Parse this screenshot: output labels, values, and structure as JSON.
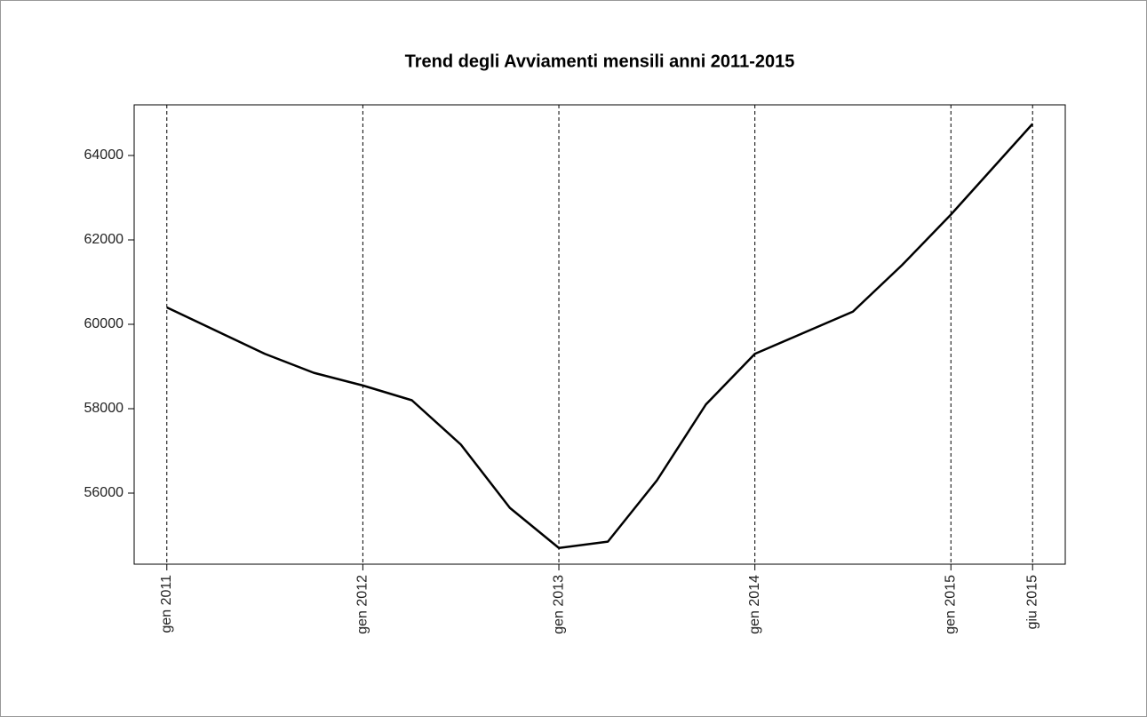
{
  "chart_data": {
    "type": "line",
    "title": "Trend degli Avviamenti mensili anni 2011-2015",
    "x": [
      "2011-01",
      "2011-04",
      "2011-07",
      "2011-10",
      "2012-01",
      "2012-04",
      "2012-07",
      "2012-10",
      "2013-01",
      "2013-04",
      "2013-07",
      "2013-10",
      "2014-01",
      "2014-04",
      "2014-07",
      "2014-10",
      "2015-01",
      "2015-06"
    ],
    "series": [
      {
        "color": "#000000",
        "values": [
          60400,
          59850,
          59300,
          58850,
          58550,
          58200,
          57150,
          55650,
          54700,
          54850,
          56300,
          58100,
          59300,
          59800,
          60300,
          61400,
          62600,
          64750
        ]
      }
    ],
    "xlim": [
      "2010-11",
      "2015-08"
    ],
    "xticks": [
      {
        "value": "2011-01",
        "label": "gen 2011"
      },
      {
        "value": "2012-01",
        "label": "gen 2012"
      },
      {
        "value": "2013-01",
        "label": "gen 2013"
      },
      {
        "value": "2014-01",
        "label": "gen 2014"
      },
      {
        "value": "2015-01",
        "label": "gen 2015"
      },
      {
        "value": "2015-06",
        "label": "giu 2015"
      }
    ],
    "ylim": [
      54316,
      65200
    ],
    "yticks": [
      56000,
      58000,
      60000,
      62000,
      64000
    ],
    "grid": true
  }
}
